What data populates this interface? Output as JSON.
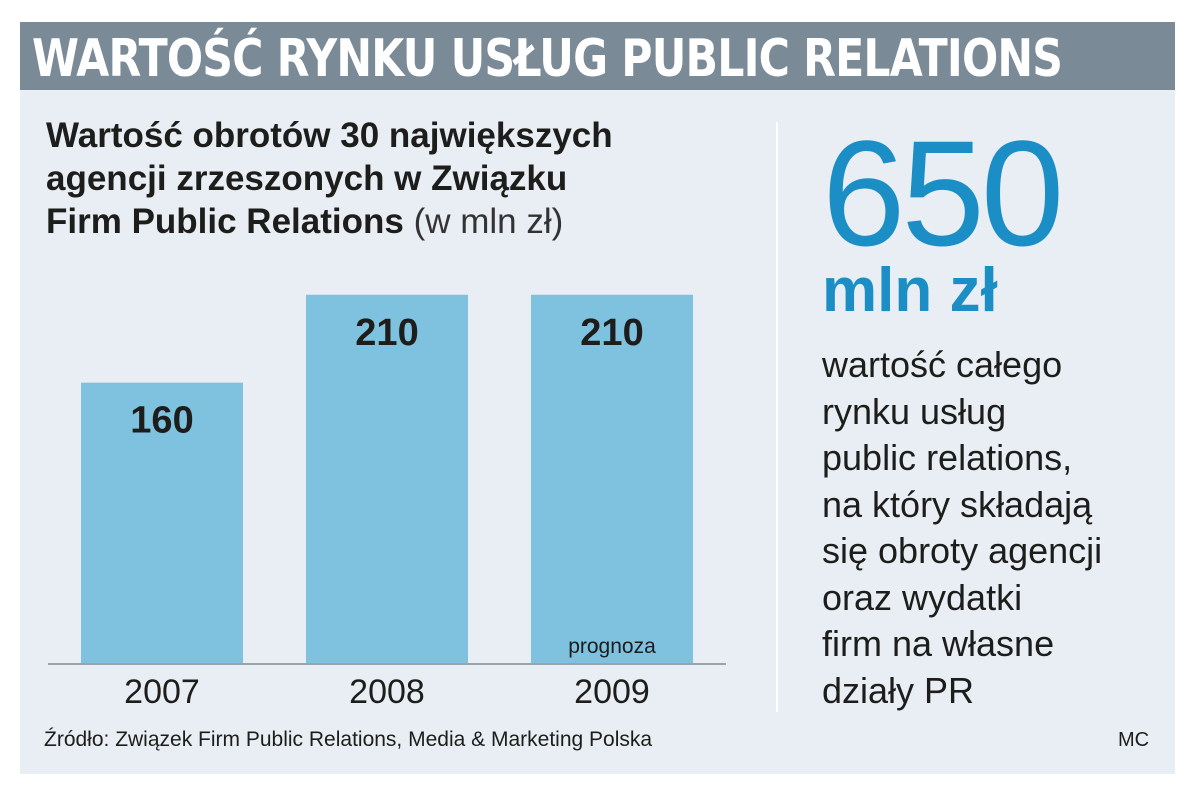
{
  "headline": "WARTOŚĆ RYNKU USŁUG PUBLIC RELATIONS",
  "chart_title": {
    "line1": "Wartość obrotów 30 największych",
    "line2": "agencji zrzeszonych w Związku",
    "line3_bold": "Firm Public Relations",
    "line3_unit": "(w mln zł)"
  },
  "chart_data": {
    "type": "bar",
    "title": "Wartość obrotów 30 największych agencji zrzeszonych w Związku Firm Public Relations (w mln zł)",
    "categories": [
      "2007",
      "2008",
      "2009"
    ],
    "values": [
      160,
      210,
      210
    ],
    "data_labels": [
      "160",
      "210",
      "210"
    ],
    "annotations": [
      {
        "category": "2009",
        "text": "prognoza"
      }
    ],
    "ylim": [
      0,
      240
    ],
    "grid": false,
    "bar_color": "#7ec2e0"
  },
  "highlight": {
    "value": "650",
    "unit": "mln zł",
    "description": [
      "wartość całego",
      "rynku usług",
      "public relations,",
      "na który składają",
      "się obroty agencji",
      "oraz wydatki",
      "firm na własne",
      "działy PR"
    ]
  },
  "source": "Źródło: Związek Firm Public Relations, Media & Marketing Polska",
  "credit": "MC",
  "colors": {
    "headline_bg": "#7b8a97",
    "panel_bg": "#e8eef3",
    "accent": "#1b8fc5",
    "bar": "#7ec2e0"
  }
}
